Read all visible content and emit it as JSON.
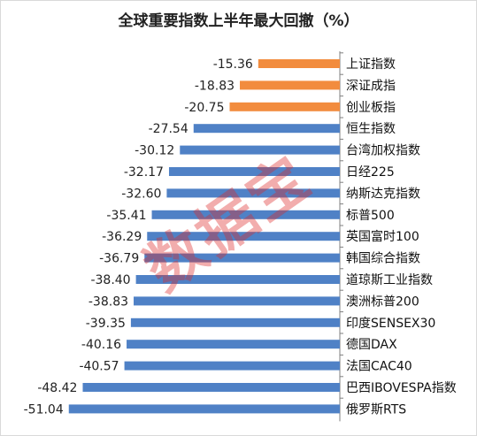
{
  "watermark": "数据宝",
  "colors": {
    "highlight": "#F28C3E",
    "default": "#4F81C6",
    "axis": "#7f7f7f"
  },
  "chart_data": {
    "type": "bar",
    "orientation": "horizontal",
    "title": "全球重要指数上半年最大回撤（%）",
    "categories": [
      "上证指数",
      "深证成指",
      "创业板指",
      "恒生指数",
      "台湾加权指数",
      "日经225",
      "纳斯达克指数",
      "标普500",
      "英国富时100",
      "韩国综合指数",
      "道琼斯工业指数",
      "澳洲标普200",
      "印度SENSEX30",
      "德国DAX",
      "法国CAC40",
      "巴西IBOVESPA指数",
      "俄罗斯RTS"
    ],
    "values": [
      -15.36,
      -18.83,
      -20.75,
      -27.54,
      -30.12,
      -32.17,
      -32.6,
      -35.41,
      -36.29,
      -36.79,
      -38.4,
      -38.83,
      -39.35,
      -40.16,
      -40.57,
      -48.42,
      -51.04
    ],
    "value_labels": [
      "-15.36",
      "-18.83",
      "-20.75",
      "-27.54",
      "-30.12",
      "-32.17",
      "-32.60",
      "-35.41",
      "-36.29",
      "-36.79",
      "-38.40",
      "-38.83",
      "-39.35",
      "-40.16",
      "-40.57",
      "-48.42",
      "-51.04"
    ],
    "highlighted": [
      true,
      true,
      true,
      false,
      false,
      false,
      false,
      false,
      false,
      false,
      false,
      false,
      false,
      false,
      false,
      false,
      false
    ],
    "xlabel": "",
    "ylabel": "",
    "grid": false,
    "legend": "none"
  }
}
